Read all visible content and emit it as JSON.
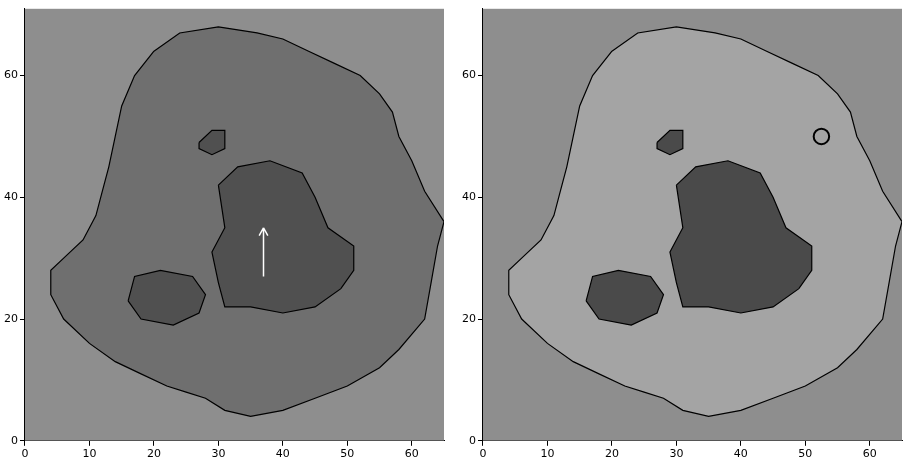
{
  "chart_data": [
    {
      "type": "scatter",
      "xlim": [
        0,
        65
      ],
      "ylim": [
        0,
        71
      ],
      "xticks": [
        0,
        10,
        20,
        30,
        40,
        50,
        60
      ],
      "yticks": [
        0,
        20,
        40,
        60
      ],
      "series": [
        {
          "color": "#000000",
          "line_style": "solid",
          "x": [
            20,
            24,
            30,
            36,
            40,
            44,
            48,
            52,
            55,
            57,
            58,
            60,
            62,
            65,
            64,
            63,
            62,
            58,
            55,
            50,
            45,
            40,
            35,
            31,
            28,
            25,
            22,
            18,
            14,
            10,
            6,
            4,
            4,
            6,
            9,
            11,
            12,
            13,
            14,
            15,
            17,
            20
          ],
          "y": [
            64,
            67,
            68,
            67,
            66,
            64,
            62,
            60,
            57,
            54,
            50,
            46,
            41,
            36,
            32,
            26,
            20,
            15,
            12,
            9,
            7,
            5,
            4,
            5,
            7,
            8,
            9,
            11,
            13,
            16,
            20,
            24,
            28,
            30,
            33,
            37,
            41,
            45,
            50,
            55,
            60,
            64
          ]
        },
        {
          "color": "#000000",
          "line_style": "solid",
          "x": [
            30,
            33,
            38,
            43,
            45,
            47,
            51,
            51,
            49,
            45,
            40,
            35,
            31,
            30,
            29,
            31,
            30
          ],
          "y": [
            42,
            45,
            46,
            44,
            40,
            35,
            32,
            28,
            25,
            22,
            21,
            22,
            22,
            26,
            31,
            35,
            42
          ]
        },
        {
          "color": "#000000",
          "line_style": "solid",
          "x": [
            16,
            18,
            23,
            27,
            28,
            26,
            21,
            17,
            16
          ],
          "y": [
            23,
            20,
            19,
            21,
            24,
            27,
            28,
            27,
            23
          ]
        },
        {
          "color": "#000000",
          "line_style": "solid",
          "x": [
            27,
            29,
            31,
            31,
            29,
            27,
            27
          ],
          "y": [
            49,
            51,
            51,
            48,
            47,
            48,
            49
          ]
        }
      ],
      "annotations": [
        {
          "type": "arrow",
          "x": [
            37,
            37
          ],
          "y": [
            27,
            35
          ],
          "color": "#ffffff"
        }
      ]
    },
    {
      "type": "scatter",
      "xlim": [
        0,
        65
      ],
      "ylim": [
        0,
        71
      ],
      "xticks": [
        0,
        10,
        20,
        30,
        40,
        50,
        60
      ],
      "yticks": [
        0,
        20,
        40,
        60
      ],
      "series": [
        {
          "color": "#000000",
          "line_style": "solid",
          "x": [
            20,
            24,
            30,
            36,
            40,
            44,
            48,
            52,
            55,
            57,
            58,
            60,
            62,
            65,
            64,
            63,
            62,
            58,
            55,
            50,
            45,
            40,
            35,
            31,
            28,
            25,
            22,
            18,
            14,
            10,
            6,
            4,
            4,
            6,
            9,
            11,
            12,
            13,
            14,
            15,
            17,
            20
          ],
          "y": [
            64,
            67,
            68,
            67,
            66,
            64,
            62,
            60,
            57,
            54,
            50,
            46,
            41,
            36,
            32,
            26,
            20,
            15,
            12,
            9,
            7,
            5,
            4,
            5,
            7,
            8,
            9,
            11,
            13,
            16,
            20,
            24,
            28,
            30,
            33,
            37,
            41,
            45,
            50,
            55,
            60,
            64
          ]
        },
        {
          "color": "#000000",
          "line_style": "solid",
          "x": [
            30,
            33,
            38,
            43,
            45,
            47,
            51,
            51,
            49,
            45,
            40,
            35,
            31,
            30,
            29,
            31,
            30
          ],
          "y": [
            42,
            45,
            46,
            44,
            40,
            35,
            32,
            28,
            25,
            22,
            21,
            22,
            22,
            26,
            31,
            35,
            42
          ]
        },
        {
          "color": "#000000",
          "line_style": "solid",
          "x": [
            16,
            18,
            23,
            27,
            28,
            26,
            21,
            17,
            16
          ],
          "y": [
            23,
            20,
            19,
            21,
            24,
            27,
            28,
            27,
            23
          ]
        },
        {
          "color": "#000000",
          "line_style": "solid",
          "x": [
            27,
            29,
            31,
            31,
            29,
            27,
            27
          ],
          "y": [
            49,
            51,
            51,
            48,
            47,
            48,
            49
          ]
        }
      ],
      "annotations": [
        {
          "type": "circle",
          "x": 52.5,
          "y": 50,
          "r": 1.2,
          "color": "#000000"
        }
      ]
    }
  ]
}
